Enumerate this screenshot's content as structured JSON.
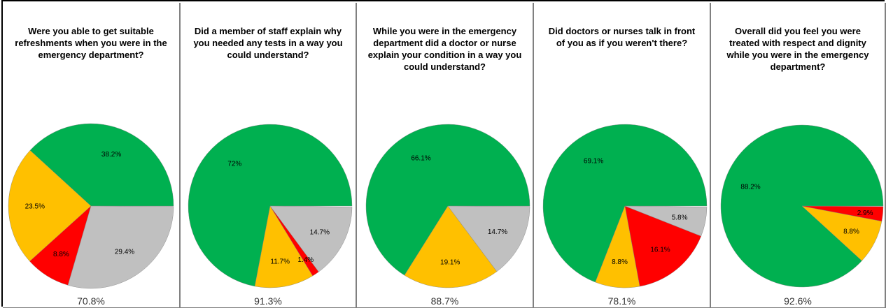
{
  "colors": {
    "green": "#00b050",
    "yellow": "#ffc000",
    "red": "#ff0000",
    "grey": "#c0c0c0",
    "slice_outline": "#7f7f7f"
  },
  "chart_data": [
    {
      "type": "pie",
      "title": "Were you able to get suitable refreshments when you were in the emergency department?",
      "score": "70.8%",
      "slices": [
        {
          "value": 38.2,
          "label": "38.2%",
          "color": "#00b050"
        },
        {
          "value": 23.5,
          "label": "23.5%",
          "color": "#ffc000"
        },
        {
          "value": 8.8,
          "label": "8.8%",
          "color": "#ff0000"
        },
        {
          "value": 29.4,
          "label": "29.4%",
          "color": "#c0c0c0"
        }
      ]
    },
    {
      "type": "pie",
      "title": "Did a member of staff explain why you needed any tests in a way you could understand?",
      "score": "91.3%",
      "slices": [
        {
          "value": 72,
          "label": "72%",
          "color": "#00b050"
        },
        {
          "value": 11.7,
          "label": "11.7%",
          "color": "#ffc000"
        },
        {
          "value": 1.4,
          "label": "1.4%",
          "color": "#ff0000"
        },
        {
          "value": 14.7,
          "label": "14.7%",
          "color": "#c0c0c0"
        }
      ]
    },
    {
      "type": "pie",
      "title": "While you were in the emergency department did a doctor or nurse explain your condition in a way you could understand?",
      "score": "88.7%",
      "slices": [
        {
          "value": 66.1,
          "label": "66.1%",
          "color": "#00b050"
        },
        {
          "value": 19.1,
          "label": "19.1%",
          "color": "#ffc000"
        },
        {
          "value": 14.7,
          "label": "14.7%",
          "color": "#c0c0c0"
        }
      ]
    },
    {
      "type": "pie",
      "title": "Did doctors or nurses talk in front of you as if you weren't there?",
      "score": "78.1%",
      "slices": [
        {
          "value": 69.1,
          "label": "69.1%",
          "color": "#00b050"
        },
        {
          "value": 8.8,
          "label": "8.8%",
          "color": "#ffc000"
        },
        {
          "value": 16.1,
          "label": "16.1%",
          "color": "#ff0000"
        },
        {
          "value": 5.8,
          "label": "5.8%",
          "color": "#c0c0c0"
        }
      ]
    },
    {
      "type": "pie",
      "title": "Overall did you feel you were treated with respect and dignity while you were in the emergency department?",
      "score": "92.6%",
      "slices": [
        {
          "value": 88.2,
          "label": "88.2%",
          "color": "#00b050"
        },
        {
          "value": 8.8,
          "label": "8.8%",
          "color": "#ffc000"
        },
        {
          "value": 2.9,
          "label": "2.9%",
          "color": "#ff0000"
        }
      ]
    }
  ]
}
